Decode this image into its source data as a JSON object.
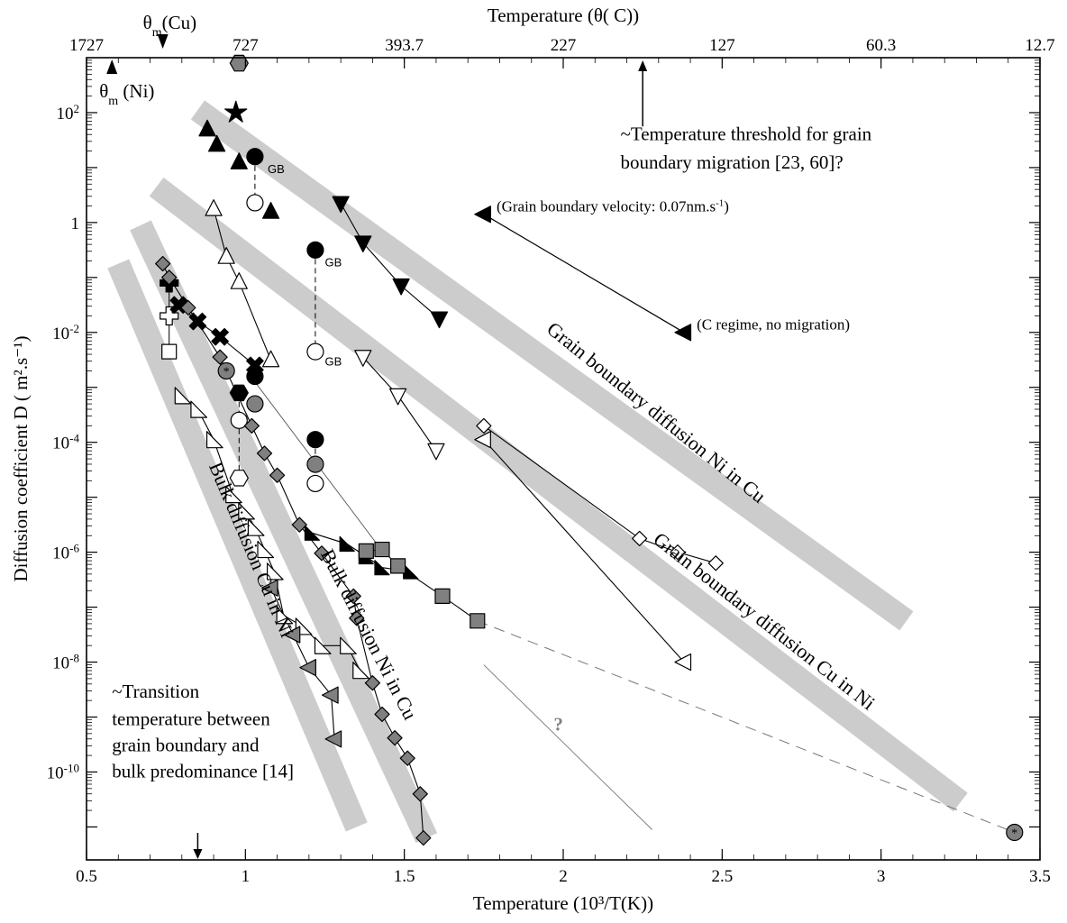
{
  "chart_data": {
    "type": "scatter",
    "title": "",
    "xlabel": "Temperature (10³/T(K))",
    "ylabel": "Diffusion coefficient D ( m².s⁻¹)",
    "top_xlabel": "Temperature (θ( C))",
    "xlim": [
      0.5,
      3.5
    ],
    "ylim_log10": [
      -11.6,
      3.0
    ],
    "x_ticks": [
      "0.5",
      "1",
      "1.5",
      "2",
      "2.5",
      "3",
      "3.5"
    ],
    "y_ticks": [
      {
        "base": "10",
        "exp": "2",
        "log": 2
      },
      {
        "base": "1",
        "exp": "",
        "log": 0
      },
      {
        "base": "10",
        "exp": "-2",
        "log": -2
      },
      {
        "base": "10",
        "exp": "-4",
        "log": -4
      },
      {
        "base": "10",
        "exp": "-6",
        "log": -6
      },
      {
        "base": "10",
        "exp": "-8",
        "log": -8
      },
      {
        "base": "10",
        "exp": "-10",
        "log": -10
      }
    ],
    "top_ticks": [
      {
        "label": "1727",
        "x": 0.5
      },
      {
        "label": "727",
        "x": 1.0
      },
      {
        "label": "393.7",
        "x": 1.5
      },
      {
        "label": "227",
        "x": 2.0
      },
      {
        "label": "127",
        "x": 2.5
      },
      {
        "label": "60.3",
        "x": 3.0
      },
      {
        "label": "12.7",
        "x": 3.5
      }
    ],
    "grid": false,
    "bands": [
      {
        "label": "Grain boundary diffusion Ni in Cu",
        "from": [
          0.85,
          2.05
        ],
        "to": [
          3.08,
          -7.25
        ]
      },
      {
        "label": "Grain boundary diffusion Cu in Ni",
        "from": [
          0.72,
          0.65
        ],
        "to": [
          3.25,
          -10.55
        ]
      },
      {
        "label": "Bulk diffusion Ni in Cu",
        "from": [
          0.67,
          -0.05
        ],
        "to": [
          1.57,
          -11.2
        ]
      },
      {
        "label": "Bulk diffusion Cu in Ni",
        "from": [
          0.6,
          -0.75
        ],
        "to": [
          1.35,
          -11.0
        ]
      }
    ],
    "band_labels": [
      {
        "text": "Grain boundary diffusion Ni in Cu",
        "x": 2.28,
        "y": -3.55,
        "angle": 39
      },
      {
        "text": "Grain boundary diffusion Cu in Ni",
        "x": 2.62,
        "y": -7.35,
        "angle": 38
      },
      {
        "text": "Bulk diffusion Ni in Cu",
        "x": 1.37,
        "y": -7.55,
        "angle": 63
      },
      {
        "text": "Bulk diffusion Cu in Ni",
        "x": 1.0,
        "y": -6.0,
        "angle": 67
      }
    ],
    "series": [
      {
        "marker": "hexagon",
        "fill": "#808080",
        "points": [
          [
            0.98,
            2.9
          ]
        ]
      },
      {
        "marker": "star",
        "fill": "#000000",
        "points": [
          [
            0.97,
            2.0
          ]
        ]
      },
      {
        "marker": "triangle-up",
        "fill": "#000000",
        "line": false,
        "points": [
          [
            0.88,
            1.7
          ],
          [
            0.91,
            1.42
          ],
          [
            0.98,
            1.1
          ],
          [
            1.08,
            0.2
          ]
        ]
      },
      {
        "marker": "circle",
        "fill": "#000000",
        "points": [
          [
            1.03,
            1.2
          ],
          [
            1.22,
            -0.5
          ],
          [
            1.03,
            -2.8
          ],
          [
            1.22,
            -3.95
          ]
        ]
      },
      {
        "marker": "circle",
        "fill": "#ffffff",
        "points": [
          [
            1.03,
            0.36
          ],
          [
            1.22,
            -2.35
          ],
          [
            0.98,
            -3.6
          ],
          [
            1.22,
            -4.75
          ]
        ]
      },
      {
        "marker": "circle",
        "fill": "#808080",
        "points": [
          [
            1.03,
            -3.3
          ],
          [
            1.22,
            -4.4
          ]
        ]
      },
      {
        "marker": "triangle-down",
        "fill": "#000000",
        "line": true,
        "points": [
          [
            1.3,
            0.35
          ],
          [
            1.37,
            -0.37
          ],
          [
            1.49,
            -1.15
          ],
          [
            1.61,
            -1.75
          ]
        ]
      },
      {
        "marker": "triangle-up",
        "fill": "#ffffff",
        "line": true,
        "points": [
          [
            0.9,
            0.25
          ],
          [
            0.94,
            -0.62
          ],
          [
            0.98,
            -1.08
          ],
          [
            1.08,
            -2.5
          ]
        ]
      },
      {
        "marker": "triangle-down",
        "fill": "#ffffff",
        "line": true,
        "points": [
          [
            1.37,
            -2.45
          ],
          [
            1.48,
            -3.15
          ],
          [
            1.6,
            -4.15
          ]
        ]
      },
      {
        "marker": "plus",
        "fill": "#000000",
        "points": [
          [
            0.76,
            -1.1
          ]
        ]
      },
      {
        "marker": "plus",
        "fill": "#ffffff",
        "points": [
          [
            0.76,
            -1.7
          ]
        ]
      },
      {
        "marker": "square",
        "fill": "#ffffff",
        "points": [
          [
            0.76,
            -2.35
          ]
        ]
      },
      {
        "marker": "x",
        "fill": "#000000",
        "line": true,
        "points": [
          [
            0.79,
            -1.5
          ],
          [
            0.85,
            -1.8
          ],
          [
            0.92,
            -2.08
          ],
          [
            1.03,
            -2.6
          ]
        ]
      },
      {
        "marker": "diamond",
        "fill": "#808080",
        "line": true,
        "points": [
          [
            0.74,
            -0.75
          ],
          [
            0.76,
            -1.0
          ],
          [
            0.82,
            -1.55
          ],
          [
            0.92,
            -2.45
          ],
          [
            1.02,
            -3.7
          ],
          [
            1.06,
            -4.2
          ],
          [
            1.1,
            -4.6
          ],
          [
            1.17,
            -5.5
          ],
          [
            1.24,
            -6.02
          ],
          [
            1.34,
            -6.8
          ],
          [
            1.35,
            -7.2
          ],
          [
            1.4,
            -8.38
          ],
          [
            1.43,
            -8.95
          ],
          [
            1.47,
            -9.38
          ],
          [
            1.51,
            -9.75
          ],
          [
            1.55,
            -10.4
          ],
          [
            1.56,
            -11.2
          ]
        ]
      },
      {
        "marker": "hexagon",
        "fill": "#000000",
        "points": [
          [
            0.98,
            -3.1
          ]
        ]
      },
      {
        "marker": "hexagon",
        "fill": "#ffffff",
        "points": [
          [
            0.98,
            -4.65
          ]
        ]
      },
      {
        "marker": "circle-star",
        "fill": "#808080",
        "points": [
          [
            0.94,
            -2.7
          ],
          [
            3.42,
            -11.1
          ]
        ]
      },
      {
        "marker": "triangle-right",
        "fill": "#ffffff",
        "line": true,
        "points": [
          [
            0.8,
            -3.15
          ],
          [
            0.85,
            -3.4
          ],
          [
            0.9,
            -3.95
          ],
          [
            0.96,
            -4.95
          ],
          [
            1.0,
            -5.25
          ],
          [
            1.03,
            -5.55
          ],
          [
            1.06,
            -5.95
          ],
          [
            1.09,
            -6.35
          ],
          [
            1.12,
            -7.15
          ],
          [
            1.18,
            -7.35
          ],
          [
            1.24,
            -7.7
          ],
          [
            1.32,
            -7.7
          ],
          [
            1.36,
            -8.15
          ]
        ]
      },
      {
        "marker": "triangle-left",
        "fill": "#808080",
        "line": true,
        "points": [
          [
            1.08,
            -6.65
          ],
          [
            1.15,
            -7.5
          ],
          [
            1.2,
            -8.1
          ],
          [
            1.27,
            -8.6
          ],
          [
            1.28,
            -9.4
          ]
        ]
      },
      {
        "marker": "triangle-half",
        "fill": "#000000",
        "line": true,
        "points": [
          [
            1.21,
            -5.65
          ],
          [
            1.32,
            -5.85
          ],
          [
            1.38,
            -6.08
          ],
          [
            1.43,
            -6.28
          ],
          [
            1.52,
            -6.35
          ]
        ]
      },
      {
        "marker": "square",
        "fill": "#808080",
        "line": true,
        "points": [
          [
            1.38,
            -5.98
          ],
          [
            1.43,
            -5.95
          ],
          [
            1.48,
            -6.25
          ],
          [
            1.62,
            -6.8
          ],
          [
            1.73,
            -7.25
          ]
        ]
      },
      {
        "marker": "diamond",
        "fill": "#ffffff",
        "line": true,
        "points": [
          [
            1.75,
            -3.7
          ],
          [
            2.24,
            -5.75
          ],
          [
            2.36,
            -6.0
          ],
          [
            2.48,
            -6.2
          ]
        ]
      },
      {
        "marker": "triangle-left",
        "fill": "#ffffff",
        "line": true,
        "points": [
          [
            1.75,
            -3.95
          ],
          [
            2.38,
            -8.0
          ]
        ]
      },
      {
        "marker": "triangle-left",
        "fill": "#000000",
        "points": [
          [
            1.75,
            0.15
          ],
          [
            2.38,
            -2.0
          ]
        ]
      }
    ],
    "annotations": [
      {
        "text": "~Temperature threshold for grain",
        "x": 2.18,
        "y": 1.5
      },
      {
        "text": "boundary migration [23, 60]?",
        "x": 2.18,
        "y": 0.98
      },
      {
        "text": "(Grain boundary velocity: 0.07nm.s",
        "sup": "-1",
        "close": ")",
        "x": 1.79,
        "y": 0.2
      },
      {
        "text": "(C regime, no migration)",
        "x": 2.42,
        "y": -1.95
      },
      {
        "text": "~Transition",
        "x": 0.58,
        "y": -8.65
      },
      {
        "text": "temperature between",
        "x": 0.58,
        "y": -9.15
      },
      {
        "text": "grain boundary and",
        "x": 0.58,
        "y": -9.62
      },
      {
        "text": "bulk predominance [14]",
        "x": 0.58,
        "y": -10.1
      },
      {
        "text": "?",
        "x": 1.97,
        "y": -9.25,
        "color": "#808080"
      }
    ],
    "gb_labels": [
      {
        "text": "GB",
        "x": 1.07,
        "y": 0.9
      },
      {
        "text": "GB",
        "x": 1.25,
        "y": -0.8
      },
      {
        "text": "GB",
        "x": 1.25,
        "y": -2.6
      }
    ],
    "markers_top": [
      {
        "text": "θm(Cu)",
        "base": "θ",
        "sub": "m",
        "rest": "(Cu)",
        "x": 0.74,
        "direction": "down"
      },
      {
        "text": "θm (Ni)",
        "base": "θ",
        "sub": "m",
        "rest": " (Ni)",
        "x": 0.58,
        "direction": "up"
      }
    ]
  }
}
